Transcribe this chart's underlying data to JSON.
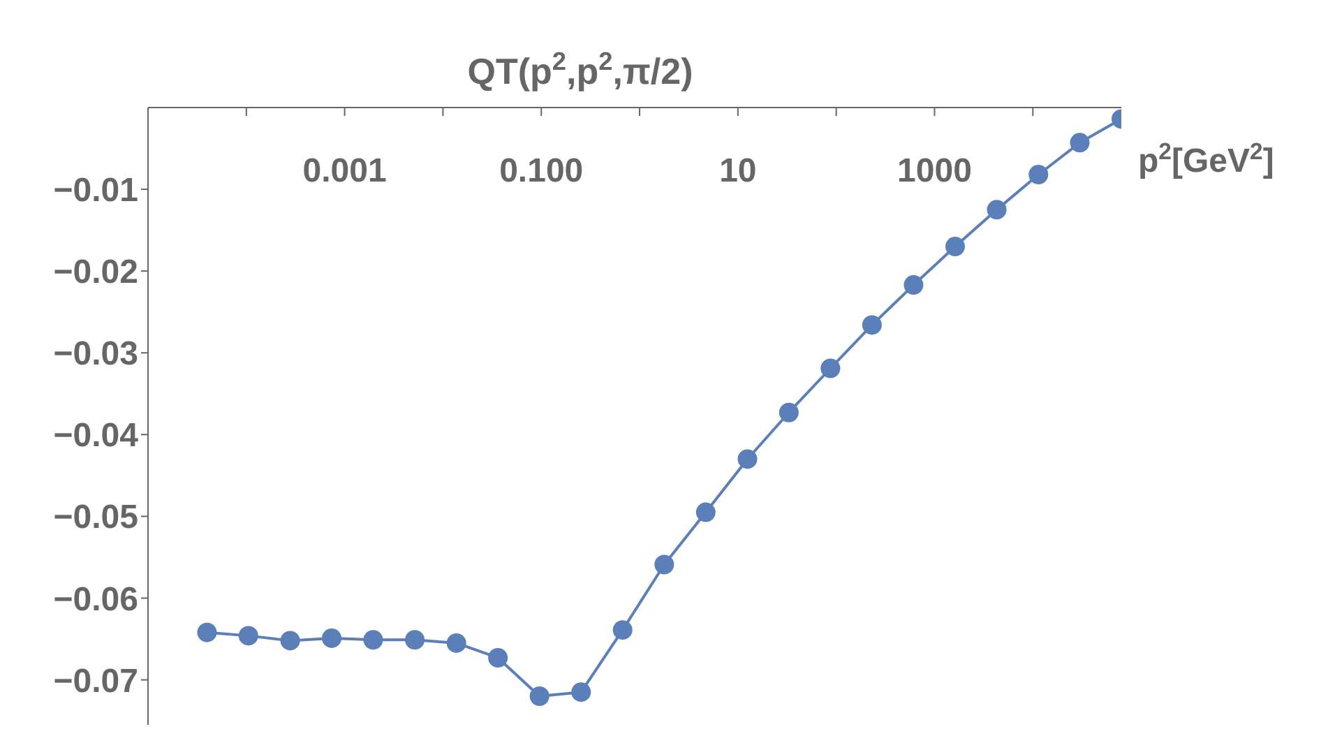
{
  "chart_data": {
    "type": "line",
    "title": "QT(p$^{2}$,p$^{2}$,π/2)",
    "xlabel": "p$^{2}$[GeV$^{2}$]",
    "log": "x",
    "x": [
      3.98e-05,
      0.000105,
      0.000279,
      0.000738,
      0.00195,
      0.00517,
      0.0137,
      0.0362,
      0.0959,
      0.254,
      0.672,
      1.78,
      4.71,
      12.5,
      33.0,
      87.3,
      231,
      612,
      1620,
      4290,
      11400,
      30000,
      79400
    ],
    "series": [
      {
        "color": "#5b7fb8",
        "values": [
          -0.0642,
          -0.0646,
          -0.0652,
          -0.0649,
          -0.0651,
          -0.0651,
          -0.0655,
          -0.0673,
          -0.072,
          -0.0715,
          -0.0639,
          -0.0559,
          -0.0495,
          -0.043,
          -0.0373,
          -0.0319,
          -0.0266,
          -0.0217,
          -0.017,
          -0.0125,
          -0.0082,
          -0.0043,
          -0.0014
        ]
      }
    ],
    "xlim": [
      1e-05,
      79400
    ],
    "xticks": [
      {
        "value": 0.0001,
        "label": null
      },
      {
        "value": 0.001,
        "label": "0.001"
      },
      {
        "value": 0.01,
        "label": null
      },
      {
        "value": 0.1,
        "label": "0.100"
      },
      {
        "value": 1,
        "label": null
      },
      10,
      {
        "value": 100,
        "label": null
      },
      1000,
      {
        "value": 10000,
        "label": null
      }
    ],
    "ylim": [
      -0.0755,
      0
    ],
    "yticks": [
      {
        "value": -0.01,
        "label": "−0.01"
      },
      {
        "value": -0.02,
        "label": "−0.02"
      },
      {
        "value": -0.03,
        "label": "−0.03"
      },
      {
        "value": -0.04,
        "label": "−0.04"
      },
      {
        "value": -0.05,
        "label": "−0.05"
      },
      {
        "value": -0.06,
        "label": "−0.06"
      },
      {
        "value": -0.07,
        "label": "−0.07"
      }
    ],
    "grid": false,
    "legend": false,
    "marker": "circle",
    "line_style": "solid"
  }
}
